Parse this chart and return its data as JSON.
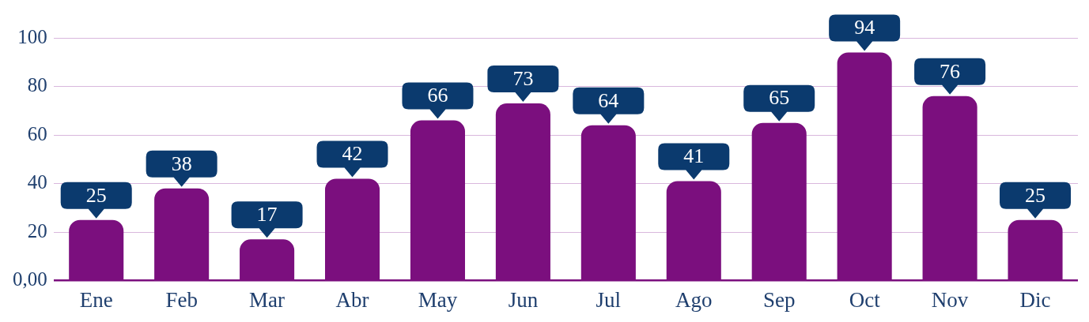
{
  "chart_data": {
    "type": "bar",
    "categories": [
      "Ene",
      "Feb",
      "Mar",
      "Abr",
      "May",
      "Jun",
      "Jul",
      "Ago",
      "Sep",
      "Oct",
      "Nov",
      "Dic"
    ],
    "values": [
      25,
      38,
      17,
      42,
      66,
      73,
      64,
      41,
      65,
      94,
      76,
      25
    ],
    "data_labels": true,
    "color": "#7b0f7e",
    "ylim": [
      0,
      100
    ],
    "yticks": [
      {
        "value": 0,
        "label": "0,00"
      },
      20,
      40,
      60,
      80,
      100
    ],
    "grid": "y"
  }
}
